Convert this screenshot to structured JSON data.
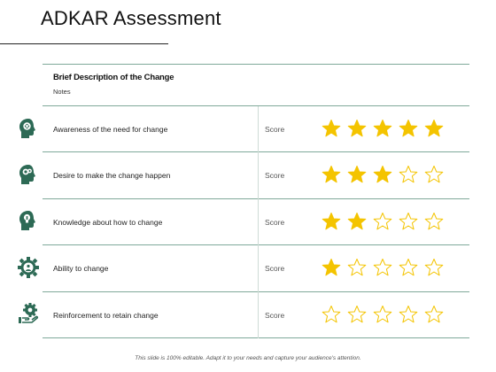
{
  "title": "ADKAR Assessment",
  "header": {
    "title": "Brief Description of the Change",
    "subtitle": "Notes"
  },
  "colors": {
    "star_filled": "#f4c400",
    "star_empty_stroke": "#f4c400",
    "icon": "#2d6a55",
    "rule": "#7fa99a"
  },
  "rows": [
    {
      "label": "Awareness of the need for change",
      "score_label": "Score",
      "stars": 5,
      "max_stars": 5,
      "icon": "head-gears-icon"
    },
    {
      "label": "Desire to make the change happen",
      "score_label": "Score",
      "stars": 3,
      "max_stars": 5,
      "icon": "head-idea-icon"
    },
    {
      "label": "Knowledge about how to change",
      "score_label": "Score",
      "stars": 2,
      "max_stars": 5,
      "icon": "head-bulb-icon"
    },
    {
      "label": "Ability to change",
      "score_label": "Score",
      "stars": 1,
      "max_stars": 5,
      "icon": "gear-people-icon"
    },
    {
      "label": "Reinforcement to retain change",
      "score_label": "Score",
      "stars": 0,
      "max_stars": 5,
      "icon": "gear-hand-icon"
    }
  ],
  "footer": "This slide is 100% editable. Adapt it to your needs and capture your audience's attention."
}
